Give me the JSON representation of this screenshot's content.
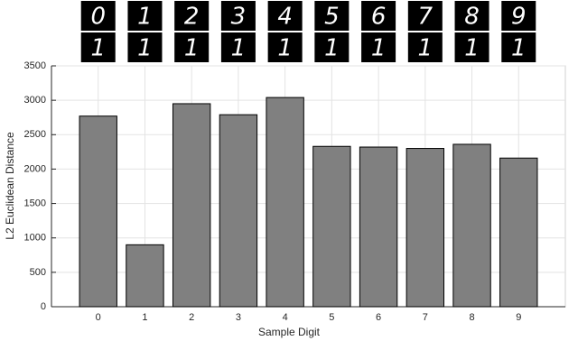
{
  "sample_images": {
    "top": [
      "0",
      "1",
      "2",
      "3",
      "4",
      "5",
      "6",
      "7",
      "8",
      "9"
    ],
    "bottom": [
      "1",
      "1",
      "1",
      "1",
      "1",
      "1",
      "1",
      "1",
      "1",
      "1"
    ]
  },
  "chart_data": {
    "type": "bar",
    "x_label": "Sample Digit",
    "y_label": "L2 Euclidean Distance",
    "x": [
      0,
      1,
      2,
      3,
      4,
      5,
      6,
      7,
      8,
      9
    ],
    "values": [
      2770,
      900,
      2950,
      2790,
      3040,
      2330,
      2320,
      2300,
      2360,
      2160
    ],
    "color": "#808080",
    "xlim": [
      -1,
      10
    ],
    "xticks": [
      0,
      1,
      2,
      3,
      4,
      5,
      6,
      7,
      8,
      9
    ],
    "ylim": [
      0,
      3500
    ],
    "yticks": [
      0,
      500,
      1000,
      1500,
      2000,
      2500,
      3000,
      3500
    ],
    "grid": true
  }
}
